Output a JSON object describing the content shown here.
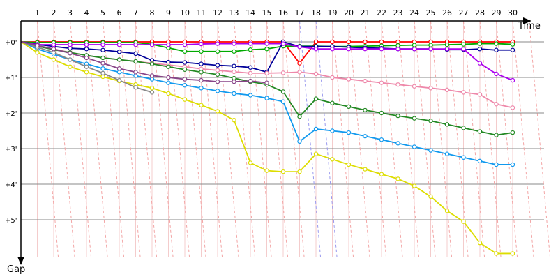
{
  "chart_data": {
    "type": "line",
    "title": "",
    "xlabel": "Time",
    "ylabel": "Gap",
    "x_ticks": [
      "1",
      "2",
      "3",
      "4",
      "5",
      "6",
      "7",
      "8",
      "9",
      "10",
      "11",
      "12",
      "13",
      "14",
      "15",
      "16",
      "17",
      "18",
      "19",
      "20",
      "21",
      "22",
      "23",
      "24",
      "25",
      "26",
      "27",
      "28",
      "29",
      "30"
    ],
    "y_ticks": [
      "+0'",
      "+1'",
      "+2'",
      "+3'",
      "+4'",
      "+5'"
    ],
    "y_unit": "minutes",
    "ylim": [
      0,
      6
    ],
    "y_inverted": true,
    "grid": true,
    "legend": "none",
    "series": [
      {
        "color": "#ff0000",
        "points": [
          [
            0,
            0
          ],
          [
            1,
            0
          ],
          [
            2,
            0
          ],
          [
            3,
            0
          ],
          [
            4,
            0
          ],
          [
            5,
            0
          ],
          [
            6,
            0
          ],
          [
            7,
            0
          ],
          [
            8,
            0
          ],
          [
            9,
            0
          ],
          [
            10,
            0
          ],
          [
            11,
            0
          ],
          [
            12,
            0
          ],
          [
            13,
            0
          ],
          [
            14,
            0
          ],
          [
            15,
            0
          ],
          [
            16,
            0
          ],
          [
            17,
            0.6
          ],
          [
            18,
            0
          ],
          [
            19,
            0
          ],
          [
            20,
            0
          ],
          [
            21,
            0
          ],
          [
            22,
            0
          ],
          [
            23,
            0
          ],
          [
            24,
            0
          ],
          [
            25,
            0
          ],
          [
            26,
            0
          ],
          [
            27,
            0
          ],
          [
            28,
            0
          ],
          [
            29,
            0
          ],
          [
            30,
            0
          ]
        ]
      },
      {
        "color": "#00aa00",
        "points": [
          [
            0,
            0
          ],
          [
            1,
            0.02
          ],
          [
            2,
            0.02
          ],
          [
            3,
            0.02
          ],
          [
            4,
            0.02
          ],
          [
            5,
            0.02
          ],
          [
            6,
            0.02
          ],
          [
            7,
            0.02
          ],
          [
            8,
            0.07
          ],
          [
            9,
            0.17
          ],
          [
            10,
            0.27
          ],
          [
            11,
            0.27
          ],
          [
            12,
            0.27
          ],
          [
            13,
            0.27
          ],
          [
            14,
            0.22
          ],
          [
            15,
            0.2
          ],
          [
            16,
            0.12
          ],
          [
            17,
            0.12
          ],
          [
            18,
            0.12
          ],
          [
            19,
            0.13
          ],
          [
            20,
            0.13
          ],
          [
            21,
            0.12
          ],
          [
            22,
            0.11
          ],
          [
            23,
            0.1
          ],
          [
            24,
            0.09
          ],
          [
            25,
            0.09
          ],
          [
            26,
            0.08
          ],
          [
            27,
            0.07
          ],
          [
            28,
            0.05
          ],
          [
            29,
            0.05
          ],
          [
            30,
            0.07
          ]
        ]
      },
      {
        "color": "#000099",
        "points": [
          [
            0,
            0
          ],
          [
            1,
            0.07
          ],
          [
            2,
            0.13
          ],
          [
            3,
            0.18
          ],
          [
            4,
            0.2
          ],
          [
            5,
            0.23
          ],
          [
            6,
            0.28
          ],
          [
            7,
            0.33
          ],
          [
            8,
            0.52
          ],
          [
            9,
            0.57
          ],
          [
            10,
            0.58
          ],
          [
            11,
            0.62
          ],
          [
            12,
            0.66
          ],
          [
            13,
            0.68
          ],
          [
            14,
            0.72
          ],
          [
            15,
            0.85
          ],
          [
            16,
            0
          ],
          [
            17,
            0.13
          ],
          [
            18,
            0.13
          ],
          [
            19,
            0.13
          ],
          [
            20,
            0.15
          ],
          [
            21,
            0.17
          ],
          [
            22,
            0.18
          ],
          [
            23,
            0.2
          ],
          [
            24,
            0.2
          ],
          [
            25,
            0.2
          ],
          [
            26,
            0.22
          ],
          [
            27,
            0.22
          ],
          [
            28,
            0.2
          ],
          [
            29,
            0.23
          ],
          [
            30,
            0.23
          ]
        ]
      },
      {
        "color": "#aa00ee",
        "points": [
          [
            0,
            0
          ],
          [
            1,
            0.08
          ],
          [
            2,
            0.08
          ],
          [
            3,
            0.08
          ],
          [
            4,
            0.08
          ],
          [
            5,
            0.08
          ],
          [
            6,
            0.08
          ],
          [
            7,
            0.08
          ],
          [
            8,
            0.08
          ],
          [
            9,
            0.08
          ],
          [
            10,
            0.08
          ],
          [
            11,
            0.06
          ],
          [
            12,
            0.05
          ],
          [
            13,
            0.05
          ],
          [
            14,
            0.05
          ],
          [
            15,
            0.05
          ],
          [
            16,
            0.05
          ],
          [
            17,
            0.14
          ],
          [
            18,
            0.2
          ],
          [
            19,
            0.2
          ],
          [
            20,
            0.2
          ],
          [
            21,
            0.2
          ],
          [
            22,
            0.2
          ],
          [
            23,
            0.2
          ],
          [
            24,
            0.2
          ],
          [
            25,
            0.2
          ],
          [
            26,
            0.2
          ],
          [
            27,
            0.2
          ],
          [
            28,
            0.6
          ],
          [
            29,
            0.9
          ],
          [
            30,
            1.08
          ]
        ]
      },
      {
        "color": "#ee88aa",
        "points": [
          [
            0,
            0
          ],
          [
            1,
            0.12
          ],
          [
            2,
            0.2
          ],
          [
            3,
            0.3
          ],
          [
            4,
            0.38
          ],
          [
            5,
            0.45
          ],
          [
            6,
            0.5
          ],
          [
            7,
            0.55
          ],
          [
            8,
            0.6
          ],
          [
            9,
            0.65
          ],
          [
            10,
            0.7
          ],
          [
            11,
            0.76
          ],
          [
            12,
            0.8
          ],
          [
            13,
            0.84
          ],
          [
            14,
            0.88
          ],
          [
            15,
            0.88
          ],
          [
            16,
            0.87
          ],
          [
            17,
            0.85
          ],
          [
            18,
            0.9
          ],
          [
            19,
            1
          ],
          [
            20,
            1.05
          ],
          [
            21,
            1.1
          ],
          [
            22,
            1.15
          ],
          [
            23,
            1.2
          ],
          [
            24,
            1.25
          ],
          [
            25,
            1.3
          ],
          [
            26,
            1.35
          ],
          [
            27,
            1.42
          ],
          [
            28,
            1.48
          ],
          [
            29,
            1.75
          ],
          [
            30,
            1.85
          ]
        ]
      },
      {
        "color": "#228822",
        "points": [
          [
            0,
            0
          ],
          [
            1,
            0.12
          ],
          [
            2,
            0.22
          ],
          [
            3,
            0.3
          ],
          [
            4,
            0.38
          ],
          [
            5,
            0.45
          ],
          [
            6,
            0.5
          ],
          [
            7,
            0.55
          ],
          [
            8,
            0.62
          ],
          [
            9,
            0.7
          ],
          [
            10,
            0.78
          ],
          [
            11,
            0.85
          ],
          [
            12,
            0.92
          ],
          [
            13,
            1.02
          ],
          [
            14,
            1.12
          ],
          [
            15,
            1.2
          ],
          [
            16,
            1.4
          ],
          [
            17,
            2.1
          ],
          [
            18,
            1.6
          ],
          [
            19,
            1.72
          ],
          [
            20,
            1.82
          ],
          [
            21,
            1.92
          ],
          [
            22,
            2
          ],
          [
            23,
            2.08
          ],
          [
            24,
            2.15
          ],
          [
            25,
            2.22
          ],
          [
            26,
            2.32
          ],
          [
            27,
            2.42
          ],
          [
            28,
            2.52
          ],
          [
            29,
            2.62
          ],
          [
            30,
            2.55
          ]
        ]
      },
      {
        "color": "#1199ee",
        "points": [
          [
            0,
            0
          ],
          [
            1,
            0.2
          ],
          [
            2,
            0.35
          ],
          [
            3,
            0.5
          ],
          [
            4,
            0.62
          ],
          [
            5,
            0.75
          ],
          [
            6,
            0.85
          ],
          [
            7,
            0.95
          ],
          [
            8,
            1.05
          ],
          [
            9,
            1.15
          ],
          [
            10,
            1.22
          ],
          [
            11,
            1.3
          ],
          [
            12,
            1.38
          ],
          [
            13,
            1.45
          ],
          [
            14,
            1.5
          ],
          [
            15,
            1.58
          ],
          [
            16,
            1.68
          ],
          [
            17,
            2.8
          ],
          [
            18,
            2.45
          ],
          [
            19,
            2.5
          ],
          [
            20,
            2.55
          ],
          [
            21,
            2.65
          ],
          [
            22,
            2.75
          ],
          [
            23,
            2.85
          ],
          [
            24,
            2.95
          ],
          [
            25,
            3.05
          ],
          [
            26,
            3.15
          ],
          [
            27,
            3.25
          ],
          [
            28,
            3.35
          ],
          [
            29,
            3.45
          ],
          [
            30,
            3.45
          ]
        ]
      },
      {
        "color": "#dddd00",
        "points": [
          [
            0,
            0
          ],
          [
            1,
            0.3
          ],
          [
            2,
            0.5
          ],
          [
            3,
            0.7
          ],
          [
            4,
            0.85
          ],
          [
            5,
            0.98
          ],
          [
            6,
            1.1
          ],
          [
            7,
            1.2
          ],
          [
            8,
            1.3
          ],
          [
            9,
            1.45
          ],
          [
            10,
            1.62
          ],
          [
            11,
            1.78
          ],
          [
            12,
            1.95
          ],
          [
            13,
            2.2
          ],
          [
            14,
            3.4
          ],
          [
            15,
            3.62
          ],
          [
            16,
            3.65
          ],
          [
            17,
            3.65
          ],
          [
            18,
            3.15
          ],
          [
            19,
            3.3
          ],
          [
            20,
            3.45
          ],
          [
            21,
            3.58
          ],
          [
            22,
            3.72
          ],
          [
            23,
            3.85
          ],
          [
            24,
            4.05
          ],
          [
            25,
            4.35
          ],
          [
            26,
            4.75
          ],
          [
            27,
            5.05
          ],
          [
            28,
            5.65
          ],
          [
            29,
            5.95
          ],
          [
            30,
            5.95
          ]
        ]
      },
      {
        "color": "#888888",
        "points": [
          [
            0,
            0
          ],
          [
            1,
            0.15
          ],
          [
            2,
            0.3
          ],
          [
            3,
            0.5
          ],
          [
            4,
            0.7
          ],
          [
            5,
            0.88
          ],
          [
            6,
            1.08
          ],
          [
            7,
            1.28
          ],
          [
            8,
            1.42
          ]
        ]
      },
      {
        "color": "#884488",
        "points": [
          [
            0,
            0
          ],
          [
            1,
            0.1
          ],
          [
            2,
            0.2
          ],
          [
            3,
            0.32
          ],
          [
            4,
            0.45
          ],
          [
            5,
            0.6
          ],
          [
            6,
            0.75
          ],
          [
            7,
            0.85
          ],
          [
            8,
            0.95
          ],
          [
            9,
            1
          ],
          [
            10,
            1.05
          ],
          [
            11,
            1.08
          ],
          [
            12,
            1.12
          ],
          [
            13,
            1.12
          ],
          [
            14,
            1.1
          ],
          [
            15,
            1.15
          ]
        ]
      }
    ]
  }
}
